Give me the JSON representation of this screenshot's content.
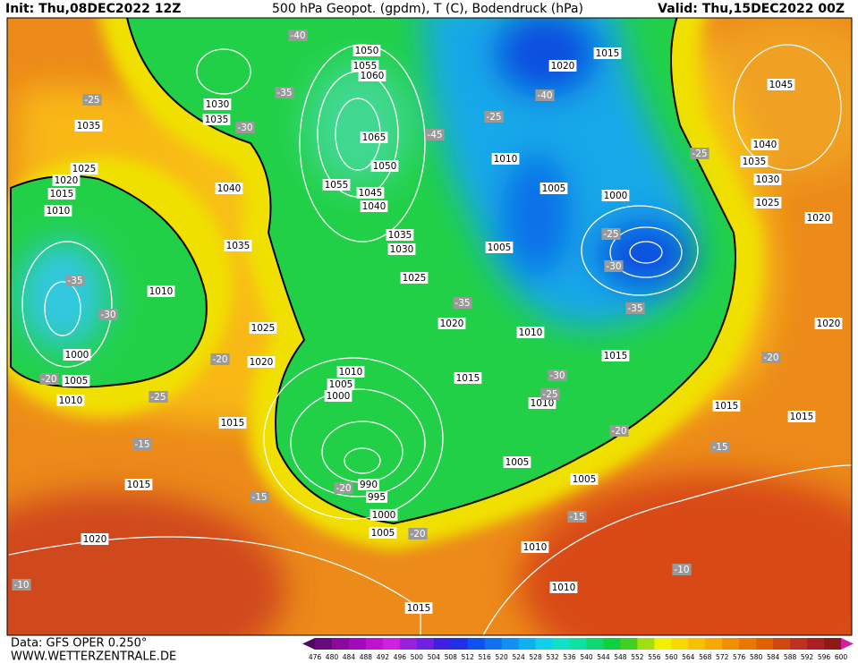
{
  "header": {
    "init": "Init: Thu,08DEC2022 12Z",
    "title": "500 hPa Geopot. (gpdm), T (C), Bodendruck (hPa)",
    "valid": "Valid: Thu,15DEC2022 00Z"
  },
  "footer": {
    "data": "Data: GFS OPER 0.250°",
    "site": "WWW.WETTERZENTRALE.DE"
  },
  "isobar_labels": [
    1050,
    1055,
    1060,
    1065,
    1050,
    1055,
    1045,
    1040,
    1035,
    1030,
    1025,
    1030,
    1035,
    1035,
    1025,
    1020,
    1015,
    1010,
    1040,
    1035,
    1010,
    1025,
    1020,
    1000,
    1005,
    1010,
    1015,
    1015,
    1020,
    1010,
    1005,
    1000,
    990,
    995,
    1000,
    1005,
    1015,
    1010,
    1005,
    1005,
    1010,
    1010,
    1015,
    1020,
    1010,
    1015,
    1005,
    1010,
    1005,
    1000,
    1020,
    1015,
    1045,
    1040,
    1035,
    1030,
    1025,
    1020,
    1020,
    1015,
    1015
  ],
  "temperature_labels": [
    -40,
    -35,
    -30,
    -25,
    -45,
    -25,
    -40,
    -25,
    -25,
    -30,
    -35,
    -35,
    -35,
    -30,
    -25,
    -20,
    -20,
    -15,
    -15,
    -20,
    -20,
    -30,
    -25,
    -20,
    -15,
    -15,
    -20,
    -10,
    -10
  ],
  "colorbar": {
    "values": [
      476,
      480,
      484,
      488,
      492,
      496,
      500,
      504,
      508,
      512,
      516,
      520,
      524,
      528,
      532,
      536,
      540,
      544,
      548,
      552,
      556,
      560,
      564,
      568,
      572,
      576,
      580,
      584,
      588,
      592,
      596,
      600
    ],
    "colors": [
      "#4b0a5e",
      "#6a0a7e",
      "#8a0a9e",
      "#a00ab8",
      "#c010d0",
      "#d020e0",
      "#9a20e0",
      "#7020e0",
      "#4020e0",
      "#2030e8",
      "#1050f0",
      "#1070f0",
      "#1090f0",
      "#10b0f0",
      "#10d0e8",
      "#10e0c8",
      "#10e0a0",
      "#10d870",
      "#10d040",
      "#40d020",
      "#a0e010",
      "#f0f000",
      "#f8d800",
      "#f8c000",
      "#f8a800",
      "#f09000",
      "#e87800",
      "#e06000",
      "#d04810",
      "#c03020",
      "#a82020",
      "#901818",
      "#d020a0"
    ]
  }
}
